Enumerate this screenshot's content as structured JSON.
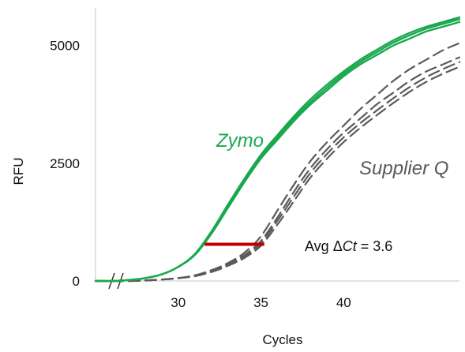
{
  "chart_data": {
    "type": "line",
    "xlabel": "Cycles",
    "ylabel": "RFU",
    "xlim": [
      25,
      47
    ],
    "ylim": [
      0,
      5800
    ],
    "x_ticks": [
      30,
      35,
      40
    ],
    "y_ticks": [
      0,
      2500,
      5000
    ],
    "axis_break": true,
    "grid": false,
    "colors": {
      "zymo": "#1aa84f",
      "supplier": "#5a5a5a",
      "delta_bar": "#c00000"
    },
    "series": [
      {
        "name": "Zymo",
        "style": "solid",
        "replicates": [
          {
            "x": [
              25,
              26,
              27,
              28,
              29,
              30,
              31,
              32,
              33,
              34,
              35,
              36,
              37,
              38,
              39,
              40,
              41,
              42,
              43,
              44,
              45,
              46,
              47
            ],
            "y": [
              0,
              0,
              20,
              60,
              140,
              300,
              550,
              1000,
              1550,
              2100,
              2600,
              3000,
              3400,
              3750,
              4050,
              4350,
              4600,
              4800,
              5000,
              5150,
              5300,
              5400,
              5500
            ]
          },
          {
            "x": [
              25,
              26,
              27,
              28,
              29,
              30,
              31,
              32,
              33,
              34,
              35,
              36,
              37,
              38,
              39,
              40,
              41,
              42,
              43,
              44,
              45,
              46,
              47
            ],
            "y": [
              0,
              0,
              20,
              60,
              140,
              300,
              560,
              1020,
              1580,
              2130,
              2640,
              3050,
              3450,
              3800,
              4110,
              4400,
              4650,
              4860,
              5060,
              5220,
              5360,
              5460,
              5560
            ]
          },
          {
            "x": [
              25,
              26,
              27,
              28,
              29,
              30,
              31,
              32,
              33,
              34,
              35,
              36,
              37,
              38,
              39,
              40,
              41,
              42,
              43,
              44,
              45,
              46,
              47
            ],
            "y": [
              0,
              0,
              20,
              60,
              140,
              300,
              570,
              1050,
              1620,
              2170,
              2680,
              3100,
              3500,
              3860,
              4170,
              4450,
              4700,
              4910,
              5110,
              5270,
              5400,
              5500,
              5600
            ]
          }
        ]
      },
      {
        "name": "Supplier Q",
        "style": "dashed",
        "replicates": [
          {
            "x": [
              25,
              26,
              27,
              28,
              29,
              30,
              31,
              32,
              33,
              34,
              35,
              36,
              37,
              38,
              39,
              40,
              41,
              42,
              43,
              44,
              45,
              46,
              47
            ],
            "y": [
              0,
              0,
              0,
              10,
              30,
              60,
              120,
              230,
              380,
              600,
              950,
              1500,
              2050,
              2550,
              2950,
              3300,
              3650,
              3950,
              4250,
              4500,
              4700,
              4900,
              5050
            ]
          },
          {
            "x": [
              25,
              26,
              27,
              28,
              29,
              30,
              31,
              32,
              33,
              34,
              35,
              36,
              37,
              38,
              39,
              40,
              41,
              42,
              43,
              44,
              45,
              46,
              47
            ],
            "y": [
              0,
              0,
              0,
              10,
              30,
              60,
              110,
              210,
              350,
              550,
              850,
              1350,
              1900,
              2400,
              2800,
              3150,
              3450,
              3750,
              4000,
              4250,
              4450,
              4600,
              4750
            ]
          },
          {
            "x": [
              25,
              26,
              27,
              28,
              29,
              30,
              31,
              32,
              33,
              34,
              35,
              36,
              37,
              38,
              39,
              40,
              41,
              42,
              43,
              44,
              45,
              46,
              47
            ],
            "y": [
              0,
              0,
              0,
              10,
              30,
              60,
              110,
              200,
              340,
              520,
              800,
              1280,
              1800,
              2300,
              2700,
              3050,
              3350,
              3620,
              3880,
              4120,
              4330,
              4500,
              4650
            ]
          },
          {
            "x": [
              25,
              26,
              27,
              28,
              29,
              30,
              31,
              32,
              33,
              34,
              35,
              36,
              37,
              38,
              39,
              40,
              41,
              42,
              43,
              44,
              45,
              46,
              47
            ],
            "y": [
              0,
              0,
              0,
              10,
              30,
              60,
              100,
              190,
              320,
              490,
              750,
              1200,
              1700,
              2200,
              2600,
              2950,
              3250,
              3520,
              3780,
              4020,
              4230,
              4400,
              4550
            ]
          }
        ]
      }
    ],
    "annotations": [
      {
        "type": "delta_bar",
        "x_start": 31.6,
        "x_end": 35.2,
        "y": 780,
        "label_prefix": "Avg ",
        "label_delta": "Δ",
        "label_ct": "Ct",
        "label_value": " = 3.6"
      }
    ]
  }
}
